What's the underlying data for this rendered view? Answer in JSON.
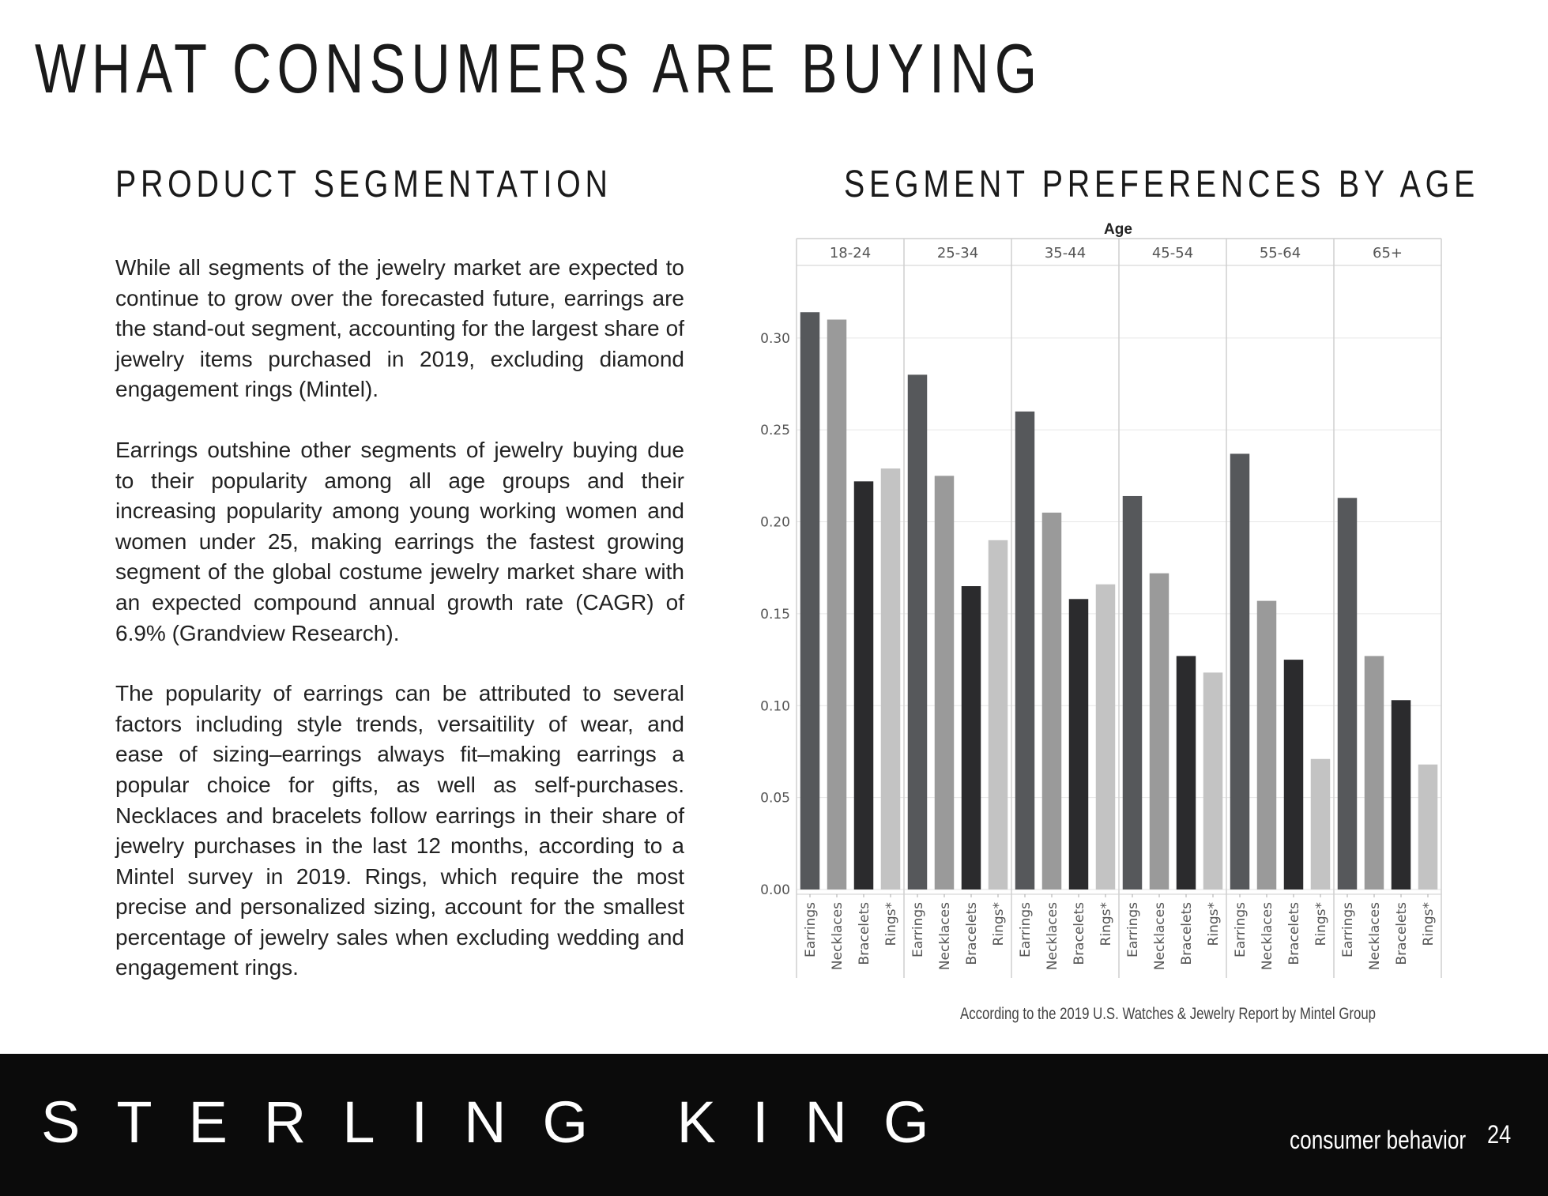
{
  "page": {
    "title": "WHAT CONSUMERS ARE BUYING",
    "left_heading": "PRODUCT SEGMENTATION",
    "chart_heading": "SEGMENT PREFERENCES BY AGE",
    "paragraphs": [
      "While all segments of the jewelry market are expected to continue to grow over the forecasted future, earrings are the stand-out segment, accounting for the largest share of jewelry items purchased in 2019, excluding diamond engagement rings (Mintel).",
      "Earrings outshine other segments of jewelry buying due to their popularity among all age groups and their increasing popularity among young working women and women under 25,  making earrings the fastest growing segment of the global costume jewelry market share with an expected compound annual growth rate (CAGR) of 6.9% (Grandview Research).",
      "The popularity of earrings can be attributed to several factors including style trends, versaitility of wear, and ease of sizing–earrings always fit–making earrings a popular choice for gifts, as well as self-purchases. Necklaces and bracelets follow earrings in their share of jewelry purchases in the last 12 months, according to a Mintel survey in 2019. Rings, which require the most precise and personalized sizing, account for the smallest percentage of jewelry sales when excluding wedding and engagement rings."
    ],
    "source_note": "According to the 2019 U.S. Watches & Jewelry Report by Mintel Group"
  },
  "footer": {
    "brand": "STERLING KING",
    "section": "consumer behavior",
    "page_number": "24"
  },
  "chart_data": {
    "type": "bar",
    "title": "SEGMENT PREFERENCES BY AGE",
    "facet_label": "Age",
    "groups": [
      "18-24",
      "25-34",
      "35-44",
      "45-54",
      "55-64",
      "65+"
    ],
    "categories": [
      "Earrings",
      "Necklaces",
      "Bracelets",
      "Rings*"
    ],
    "series": [
      {
        "group": "18-24",
        "values": [
          0.314,
          0.31,
          0.222,
          0.229
        ]
      },
      {
        "group": "25-34",
        "values": [
          0.28,
          0.225,
          0.165,
          0.19
        ]
      },
      {
        "group": "35-44",
        "values": [
          0.26,
          0.205,
          0.158,
          0.166
        ]
      },
      {
        "group": "45-54",
        "values": [
          0.214,
          0.172,
          0.127,
          0.118
        ]
      },
      {
        "group": "55-64",
        "values": [
          0.237,
          0.157,
          0.125,
          0.071
        ]
      },
      {
        "group": "65+",
        "values": [
          0.213,
          0.127,
          0.103,
          0.068
        ]
      }
    ],
    "category_colors": [
      "#56585b",
      "#9a9a9a",
      "#2b2b2d",
      "#c3c3c3"
    ],
    "yticks": [
      0.0,
      0.05,
      0.1,
      0.15,
      0.2,
      0.25,
      0.3
    ],
    "ytick_labels": [
      "0.00",
      "0.05",
      "0.10",
      "0.15",
      "0.20",
      "0.25",
      "0.30"
    ],
    "ylim": [
      0,
      0.33
    ],
    "grid": true,
    "xlabel": "",
    "ylabel": ""
  }
}
